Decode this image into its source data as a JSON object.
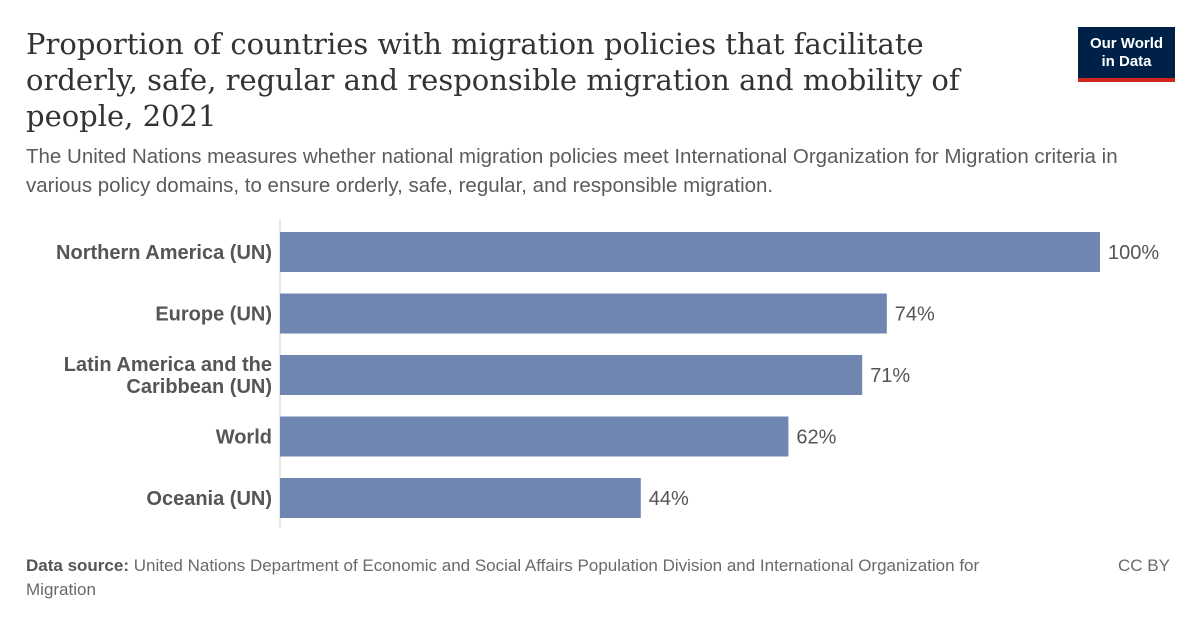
{
  "header": {
    "title": "Proportion of countries with migration policies that facilitate orderly, safe, regular and responsible migration and mobility of people, 2021",
    "subtitle": "The United Nations measures whether national migration policies meet International Organization for Migration criteria in various policy domains, to ensure orderly, safe, regular, and responsible migration.",
    "logo_line1": "Our World",
    "logo_line2": "in Data"
  },
  "footer": {
    "source_label": "Data source:",
    "source_text": "United Nations Department of Economic and Social Affairs Population Division and International Organization for Migration",
    "license": "CC BY"
  },
  "colors": {
    "bar": "#6e86b0",
    "axis": "#cccccc",
    "label": "#555555",
    "value": "#555555",
    "logo_bg": "#002147",
    "logo_accent": "#ce261e"
  },
  "chart_data": {
    "type": "bar",
    "orientation": "horizontal",
    "categories": [
      [
        "Northern America (UN)"
      ],
      [
        "Europe (UN)"
      ],
      [
        "Latin America and the",
        "Caribbean (UN)"
      ],
      [
        "World"
      ],
      [
        "Oceania (UN)"
      ]
    ],
    "values": [
      100,
      74,
      71,
      62,
      44
    ],
    "value_labels": [
      "100%",
      "74%",
      "71%",
      "62%",
      "44%"
    ],
    "unit": "%",
    "xlim": [
      0,
      100
    ],
    "grid": false,
    "legend": "none"
  }
}
